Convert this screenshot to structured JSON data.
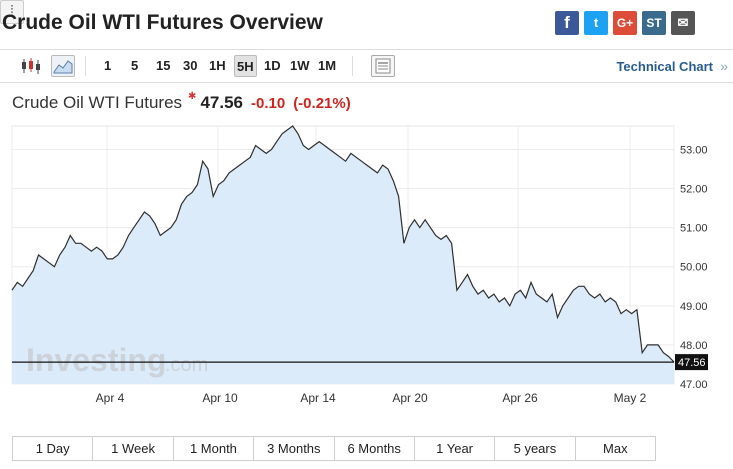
{
  "page": {
    "title": "Crude Oil WTI Futures Overview"
  },
  "share": {
    "facebook_glyph": "f",
    "twitter_glyph": "t",
    "google_glyph": "G+",
    "stocktwits_glyph": "ST",
    "mail_glyph": "✉",
    "more_glyph": "⁞"
  },
  "toolbar": {
    "ranges": [
      "1",
      "5",
      "15",
      "30",
      "1H",
      "5H",
      "1D",
      "1W",
      "1M"
    ],
    "active_range": "5H",
    "technical_link": "Technical Chart",
    "technical_arrow": "»",
    "icons": [
      "candlestick-chart-icon",
      "area-chart-icon",
      "chart-settings-icon"
    ]
  },
  "quote": {
    "name": "Crude Oil WTI Futures",
    "star": "✱",
    "price": "47.56",
    "change": "-0.10",
    "change_pct": "(-0.21%)",
    "colors": {
      "negative": "#d1241f",
      "line": "#2f2f2f",
      "fill": "#dcebfa"
    }
  },
  "chart_data": {
    "type": "area",
    "x_tick_labels": [
      "Apr 4",
      "Apr 10",
      "Apr 14",
      "Apr 20",
      "Apr 26",
      "May 2"
    ],
    "ylim": [
      47.0,
      53.6
    ],
    "y_ticks": [
      "47.00",
      "48.00",
      "49.00",
      "50.00",
      "51.00",
      "52.00",
      "53.00"
    ],
    "current_price_label": "47.56",
    "current_price": 47.56,
    "watermark": "Investing",
    "watermark_suffix": ".com",
    "grid": true,
    "series": [
      {
        "values": [
          49.4,
          49.6,
          49.5,
          49.7,
          49.9,
          50.3,
          50.2,
          50.1,
          50.0,
          50.3,
          50.5,
          50.8,
          50.6,
          50.6,
          50.5,
          50.4,
          50.5,
          50.4,
          50.2,
          50.2,
          50.3,
          50.5,
          50.8,
          51.0,
          51.2,
          51.4,
          51.3,
          51.1,
          50.8,
          50.9,
          51.0,
          51.2,
          51.6,
          51.8,
          51.9,
          52.1,
          52.7,
          52.5,
          51.8,
          52.1,
          52.2,
          52.4,
          52.5,
          52.6,
          52.7,
          52.8,
          53.1,
          53.0,
          52.9,
          53.0,
          53.2,
          53.4,
          53.5,
          53.6,
          53.4,
          53.1,
          53.0,
          53.1,
          53.2,
          53.1,
          53.0,
          52.9,
          52.8,
          52.7,
          52.9,
          52.8,
          52.7,
          52.6,
          52.5,
          52.4,
          52.6,
          52.5,
          52.2,
          51.8,
          50.6,
          51.0,
          51.2,
          51.0,
          51.2,
          51.0,
          50.8,
          50.7,
          50.8,
          50.6,
          49.4,
          49.6,
          49.8,
          49.5,
          49.3,
          49.4,
          49.2,
          49.3,
          49.1,
          49.2,
          49.0,
          49.3,
          49.4,
          49.2,
          49.6,
          49.3,
          49.2,
          49.1,
          49.3,
          48.7,
          49.0,
          49.2,
          49.4,
          49.5,
          49.5,
          49.3,
          49.2,
          49.3,
          49.1,
          49.2,
          49.1,
          48.8,
          48.9,
          48.8,
          48.9,
          47.8,
          48.0,
          48.0,
          48.0,
          47.8,
          47.7,
          47.56
        ]
      }
    ]
  },
  "periods": [
    "1 Day",
    "1 Week",
    "1 Month",
    "3 Months",
    "6 Months",
    "1 Year",
    "5 years",
    "Max"
  ]
}
